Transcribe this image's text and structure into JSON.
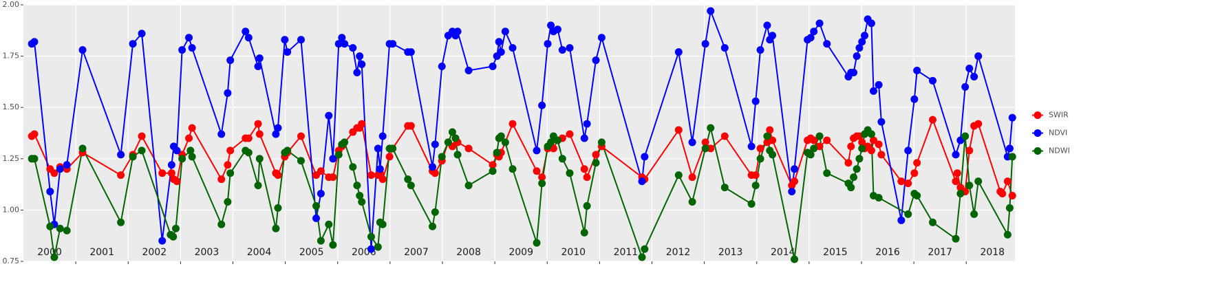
{
  "chart_data": {
    "type": "line",
    "xlim": [
      2000,
      2018.93
    ],
    "xticks": [
      2001,
      2002,
      2003,
      2004,
      2005,
      2006,
      2007,
      2008,
      2009,
      2010,
      2011,
      2012,
      2013,
      2014,
      2015,
      2016,
      2017,
      2018
    ],
    "ylim": [
      0.75,
      2
    ],
    "yticks": [
      0.75,
      {
        "value": 1,
        "label": "1.00"
      },
      1.25,
      {
        "value": 1.5,
        "label": "1.50"
      },
      1.75,
      {
        "value": 2,
        "label": "2.00"
      }
    ],
    "grid": true,
    "legend": "right",
    "annotations": [
      {
        "text": "2000",
        "x": 2000.5
      },
      {
        "text": "2001",
        "x": 2001.5
      },
      {
        "text": "2002",
        "x": 2002.5
      },
      {
        "text": "2003",
        "x": 2003.5
      },
      {
        "text": "2004",
        "x": 2004.5
      },
      {
        "text": "2005",
        "x": 2005.5
      },
      {
        "text": "2006",
        "x": 2006.5
      },
      {
        "text": "2007",
        "x": 2007.5
      },
      {
        "text": "2008",
        "x": 2008.5
      },
      {
        "text": "2009",
        "x": 2009.5
      },
      {
        "text": "2010",
        "x": 2010.5
      },
      {
        "text": "2011",
        "x": 2011.5
      },
      {
        "text": "2012",
        "x": 2012.5
      },
      {
        "text": "2013",
        "x": 2013.5
      },
      {
        "text": "2014",
        "x": 2014.5
      },
      {
        "text": "2015",
        "x": 2015.5
      },
      {
        "text": "2016",
        "x": 2016.5
      },
      {
        "text": "2017",
        "x": 2017.5
      },
      {
        "text": "2018",
        "x": 2018.5
      }
    ],
    "series": [
      {
        "name": "SWIR",
        "color": "#ff0000",
        "x": [
          2000.16,
          2000.21,
          2000.51,
          2000.59,
          2000.7,
          2000.83,
          2001.13,
          2001.86,
          2002.09,
          2002.26,
          2002.65,
          2002.83,
          2002.87,
          2002.93,
          2003.03,
          2003.16,
          2003.22,
          2003.78,
          2003.9,
          2003.95,
          2004.24,
          2004.3,
          2004.48,
          2004.51,
          2004.82,
          2004.86,
          2004.99,
          2005.04,
          2005.3,
          2005.59,
          2005.68,
          2005.83,
          2005.91,
          2006.02,
          2006.08,
          2006.29,
          2006.37,
          2006.42,
          2006.46,
          2006.64,
          2006.77,
          2006.81,
          2006.86,
          2006.99,
          2007.05,
          2007.34,
          2007.4,
          2007.81,
          2007.86,
          2007.99,
          2008.11,
          2008.19,
          2008.25,
          2008.29,
          2008.5,
          2008.96,
          2009.04,
          2009.08,
          2009.12,
          2009.34,
          2009.8,
          2009.9,
          2010.01,
          2010.07,
          2010.12,
          2010.2,
          2010.29,
          2010.43,
          2010.71,
          2010.76,
          2010.93,
          2011.04,
          2011.81,
          2011.86,
          2012.51,
          2012.77,
          2013.02,
          2013.12,
          2013.39,
          2013.9,
          2013.98,
          2014.07,
          2014.2,
          2014.25,
          2014.3,
          2014.67,
          2014.72,
          2014.97,
          2015.03,
          2015.09,
          2015.2,
          2015.34,
          2015.75,
          2015.8,
          2015.85,
          2015.91,
          2015.96,
          2016.01,
          2016.06,
          2016.12,
          2016.19,
          2016.23,
          2016.33,
          2016.38,
          2016.76,
          2016.89,
          2017.01,
          2017.06,
          2017.36,
          2017.8,
          2017.83,
          2017.89,
          2017.98,
          2018.06,
          2018.15,
          2018.23,
          2018.65,
          2018.69,
          2018.79,
          2018.88
        ],
        "values": [
          1.36,
          1.37,
          1.2,
          1.18,
          1.21,
          1.2,
          1.28,
          1.17,
          1.27,
          1.36,
          1.18,
          1.18,
          1.15,
          1.14,
          1.27,
          1.35,
          1.4,
          1.15,
          1.22,
          1.29,
          1.35,
          1.35,
          1.42,
          1.37,
          1.18,
          1.17,
          1.26,
          1.28,
          1.36,
          1.17,
          1.19,
          1.16,
          1.16,
          1.29,
          1.31,
          1.38,
          1.4,
          1.4,
          1.42,
          1.17,
          1.17,
          1.18,
          1.15,
          1.26,
          1.3,
          1.41,
          1.41,
          1.19,
          1.18,
          1.24,
          1.33,
          1.31,
          1.35,
          1.33,
          1.3,
          1.22,
          1.27,
          1.26,
          1.28,
          1.42,
          1.19,
          1.16,
          1.3,
          1.31,
          1.3,
          1.34,
          1.35,
          1.37,
          1.2,
          1.16,
          1.27,
          1.31,
          1.16,
          1.15,
          1.39,
          1.16,
          1.33,
          1.3,
          1.36,
          1.17,
          1.17,
          1.3,
          1.33,
          1.39,
          1.34,
          1.12,
          1.14,
          1.34,
          1.35,
          1.34,
          1.31,
          1.34,
          1.23,
          1.31,
          1.35,
          1.36,
          1.36,
          1.33,
          1.3,
          1.31,
          1.29,
          1.34,
          1.32,
          1.27,
          1.14,
          1.13,
          1.18,
          1.23,
          1.44,
          1.14,
          1.18,
          1.11,
          1.09,
          1.29,
          1.41,
          1.42,
          1.09,
          1.08,
          1.14,
          1.07
        ]
      },
      {
        "name": "NDVI",
        "color": "#0000ff",
        "x": [
          2000.16,
          2000.21,
          2000.51,
          2000.59,
          2000.7,
          2000.83,
          2001.13,
          2001.86,
          2002.09,
          2002.26,
          2002.65,
          2002.83,
          2002.87,
          2002.93,
          2003.03,
          2003.16,
          2003.22,
          2003.78,
          2003.9,
          2003.95,
          2004.24,
          2004.3,
          2004.48,
          2004.51,
          2004.82,
          2004.86,
          2004.99,
          2005.04,
          2005.3,
          2005.59,
          2005.68,
          2005.83,
          2005.91,
          2006.02,
          2006.08,
          2006.13,
          2006.29,
          2006.37,
          2006.42,
          2006.46,
          2006.64,
          2006.77,
          2006.81,
          2006.86,
          2006.99,
          2007.05,
          2007.34,
          2007.4,
          2007.81,
          2007.86,
          2007.99,
          2008.11,
          2008.19,
          2008.25,
          2008.29,
          2008.5,
          2008.96,
          2009.04,
          2009.08,
          2009.12,
          2009.2,
          2009.34,
          2009.8,
          2009.9,
          2010.01,
          2010.07,
          2010.12,
          2010.2,
          2010.29,
          2010.43,
          2010.71,
          2010.76,
          2010.93,
          2011.04,
          2011.81,
          2011.86,
          2012.51,
          2012.77,
          2013.02,
          2013.12,
          2013.39,
          2013.9,
          2013.98,
          2014.07,
          2014.2,
          2014.25,
          2014.3,
          2014.67,
          2014.72,
          2014.97,
          2015.03,
          2015.09,
          2015.2,
          2015.34,
          2015.75,
          2015.8,
          2015.85,
          2015.91,
          2015.96,
          2016.01,
          2016.06,
          2016.12,
          2016.19,
          2016.23,
          2016.33,
          2016.38,
          2016.76,
          2016.89,
          2017.01,
          2017.06,
          2017.36,
          2017.8,
          2017.89,
          2017.98,
          2018.06,
          2018.15,
          2018.23,
          2018.79,
          2018.83,
          2018.88
        ],
        "values": [
          1.81,
          1.82,
          1.09,
          0.93,
          1.2,
          1.22,
          1.78,
          1.27,
          1.81,
          1.86,
          0.85,
          1.22,
          1.31,
          1.29,
          1.78,
          1.84,
          1.79,
          1.37,
          1.57,
          1.73,
          1.87,
          1.84,
          1.7,
          1.74,
          1.37,
          1.4,
          1.83,
          1.77,
          1.83,
          0.96,
          1.08,
          1.46,
          1.25,
          1.81,
          1.84,
          1.81,
          1.79,
          1.67,
          1.75,
          1.71,
          0.81,
          1.3,
          1.2,
          1.36,
          1.81,
          1.81,
          1.77,
          1.77,
          1.21,
          1.32,
          1.7,
          1.85,
          1.87,
          1.85,
          1.87,
          1.68,
          1.7,
          1.75,
          1.82,
          1.77,
          1.87,
          1.79,
          1.29,
          1.51,
          1.81,
          1.9,
          1.87,
          1.88,
          1.78,
          1.79,
          1.35,
          1.42,
          1.73,
          1.84,
          1.14,
          1.26,
          1.77,
          1.33,
          1.81,
          1.97,
          1.79,
          1.31,
          1.53,
          1.78,
          1.9,
          1.83,
          1.85,
          1.09,
          1.2,
          1.83,
          1.84,
          1.87,
          1.91,
          1.81,
          1.65,
          1.67,
          1.67,
          1.75,
          1.79,
          1.82,
          1.85,
          1.93,
          1.91,
          1.58,
          1.61,
          1.43,
          0.95,
          1.29,
          1.54,
          1.68,
          1.63,
          1.27,
          1.34,
          1.6,
          1.69,
          1.65,
          1.75,
          1.26,
          1.3,
          1.45
        ]
      },
      {
        "name": "NDWI",
        "color": "#006400",
        "x": [
          2000.16,
          2000.21,
          2000.51,
          2000.59,
          2000.7,
          2000.83,
          2001.13,
          2001.86,
          2002.09,
          2002.26,
          2002.81,
          2002.86,
          2002.91,
          2003.03,
          2003.19,
          2003.22,
          2003.78,
          2003.9,
          2003.95,
          2004.24,
          2004.3,
          2004.48,
          2004.51,
          2004.82,
          2004.86,
          2004.99,
          2005.04,
          2005.3,
          2005.59,
          2005.68,
          2005.83,
          2005.91,
          2006.02,
          2006.08,
          2006.13,
          2006.29,
          2006.37,
          2006.42,
          2006.46,
          2006.64,
          2006.77,
          2006.81,
          2006.86,
          2006.99,
          2007.05,
          2007.34,
          2007.4,
          2007.81,
          2007.86,
          2007.99,
          2008.11,
          2008.19,
          2008.25,
          2008.29,
          2008.5,
          2008.96,
          2009.04,
          2009.08,
          2009.12,
          2009.2,
          2009.34,
          2009.8,
          2009.9,
          2010.01,
          2010.07,
          2010.12,
          2010.2,
          2010.29,
          2010.43,
          2010.71,
          2010.76,
          2010.93,
          2011.04,
          2011.81,
          2011.86,
          2012.51,
          2012.77,
          2013.02,
          2013.12,
          2013.39,
          2013.9,
          2013.98,
          2014.07,
          2014.2,
          2014.25,
          2014.3,
          2014.72,
          2014.97,
          2015.03,
          2015.09,
          2015.2,
          2015.34,
          2015.75,
          2015.8,
          2015.85,
          2015.91,
          2015.96,
          2016.01,
          2016.06,
          2016.12,
          2016.19,
          2016.23,
          2016.33,
          2016.89,
          2017.01,
          2017.06,
          2017.36,
          2017.8,
          2017.89,
          2017.98,
          2018.06,
          2018.15,
          2018.23,
          2018.79,
          2018.83,
          2018.88
        ],
        "values": [
          1.25,
          1.25,
          0.92,
          0.77,
          0.91,
          0.9,
          1.3,
          0.94,
          1.26,
          1.29,
          0.88,
          0.87,
          0.91,
          1.25,
          1.29,
          1.26,
          0.93,
          1.04,
          1.18,
          1.29,
          1.28,
          1.12,
          1.25,
          0.91,
          1.01,
          1.28,
          1.29,
          1.24,
          1.02,
          0.85,
          0.93,
          0.83,
          1.27,
          1.32,
          1.33,
          1.21,
          1.12,
          1.07,
          1.04,
          0.87,
          0.82,
          0.94,
          0.93,
          1.3,
          1.3,
          1.15,
          1.12,
          0.92,
          0.99,
          1.26,
          1.33,
          1.38,
          1.35,
          1.27,
          1.12,
          1.19,
          1.28,
          1.35,
          1.36,
          1.33,
          1.2,
          0.84,
          1.13,
          1.31,
          1.33,
          1.36,
          1.34,
          1.25,
          1.18,
          0.89,
          1.02,
          1.23,
          1.33,
          0.77,
          0.81,
          1.17,
          1.04,
          1.3,
          1.4,
          1.11,
          1.03,
          1.12,
          1.25,
          1.36,
          1.29,
          1.27,
          0.76,
          1.28,
          1.27,
          1.3,
          1.36,
          1.18,
          1.13,
          1.11,
          1.16,
          1.2,
          1.25,
          1.3,
          1.37,
          1.39,
          1.37,
          1.07,
          1.06,
          0.98,
          1.08,
          1.07,
          0.94,
          0.86,
          1.08,
          1.36,
          1.12,
          0.98,
          1.14,
          0.88,
          1.01,
          1.26
        ]
      }
    ]
  }
}
